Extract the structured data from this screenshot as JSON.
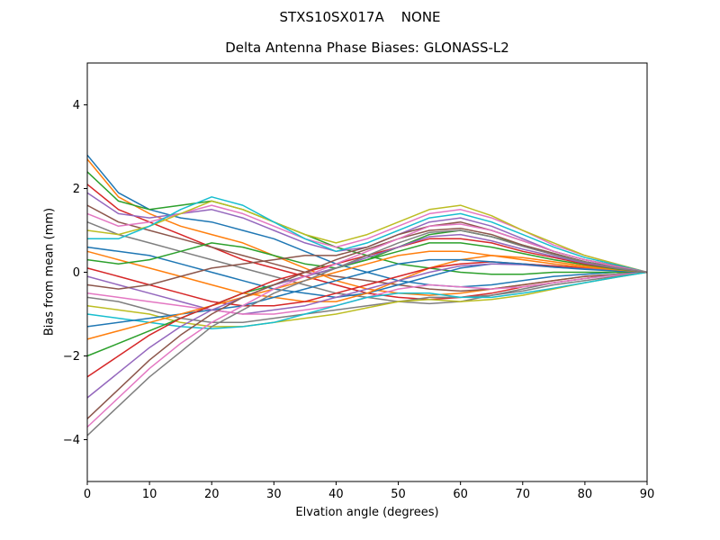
{
  "chart_data": {
    "type": "line",
    "suptitle": "STXS10SX017A    NONE",
    "title": "Delta Antenna Phase Biases: GLONASS-L2",
    "xlabel": "Elvation angle (degrees)",
    "ylabel": "Bias from mean (mm)",
    "xlim": [
      0,
      90
    ],
    "ylim": [
      -5,
      5
    ],
    "xticks": [
      {
        "value": 0,
        "label": "0"
      },
      {
        "value": 10,
        "label": "10"
      },
      {
        "value": 20,
        "label": "20"
      },
      {
        "value": 30,
        "label": "30"
      },
      {
        "value": 40,
        "label": "40"
      },
      {
        "value": 50,
        "label": "50"
      },
      {
        "value": 60,
        "label": "60"
      },
      {
        "value": 70,
        "label": "70"
      },
      {
        "value": 80,
        "label": "80"
      },
      {
        "value": 90,
        "label": "90"
      }
    ],
    "yticks": [
      {
        "value": -4,
        "label": "−4"
      },
      {
        "value": -2,
        "label": "−2"
      },
      {
        "value": 0,
        "label": "0"
      },
      {
        "value": 2,
        "label": "2"
      },
      {
        "value": 4,
        "label": "4"
      }
    ],
    "grid": false,
    "legend": "none",
    "x": [
      0,
      5,
      10,
      15,
      20,
      25,
      30,
      35,
      40,
      45,
      50,
      55,
      60,
      65,
      70,
      75,
      80,
      85,
      90
    ],
    "series": [
      {
        "color": "#1f77b4",
        "values": [
          2.8,
          1.9,
          1.5,
          1.3,
          1.2,
          1.0,
          0.8,
          0.5,
          0.2,
          0.0,
          -0.2,
          -0.3,
          -0.35,
          -0.3,
          -0.2,
          -0.1,
          -0.05,
          0.0,
          0.0
        ]
      },
      {
        "color": "#ff7f0e",
        "values": [
          2.7,
          1.8,
          1.4,
          1.1,
          0.9,
          0.7,
          0.4,
          0.1,
          -0.2,
          -0.4,
          -0.5,
          -0.55,
          -0.5,
          -0.4,
          -0.3,
          -0.2,
          -0.1,
          -0.05,
          0.0
        ]
      },
      {
        "color": "#2ca02c",
        "values": [
          2.4,
          1.7,
          1.5,
          1.6,
          1.7,
          1.5,
          1.2,
          0.9,
          0.6,
          0.4,
          0.2,
          0.1,
          0.0,
          -0.05,
          -0.05,
          0.0,
          0.0,
          0.0,
          0.0
        ]
      },
      {
        "color": "#d62728",
        "values": [
          2.1,
          1.5,
          1.2,
          0.9,
          0.6,
          0.3,
          0.1,
          -0.1,
          -0.3,
          -0.5,
          -0.6,
          -0.65,
          -0.6,
          -0.5,
          -0.35,
          -0.25,
          -0.15,
          -0.05,
          0.0
        ]
      },
      {
        "color": "#9467bd",
        "values": [
          1.9,
          1.4,
          1.3,
          1.4,
          1.5,
          1.3,
          1.0,
          0.7,
          0.5,
          0.6,
          0.9,
          1.2,
          1.3,
          1.1,
          0.8,
          0.5,
          0.3,
          0.15,
          0.0
        ]
      },
      {
        "color": "#8c564b",
        "values": [
          1.6,
          1.2,
          1.0,
          0.8,
          0.6,
          0.4,
          0.2,
          0.0,
          -0.1,
          -0.2,
          -0.3,
          -0.4,
          -0.45,
          -0.4,
          -0.3,
          -0.2,
          -0.1,
          -0.05,
          0.0
        ]
      },
      {
        "color": "#e377c2",
        "values": [
          1.4,
          1.1,
          1.2,
          1.4,
          1.6,
          1.4,
          1.1,
          0.8,
          0.6,
          0.8,
          1.1,
          1.4,
          1.5,
          1.3,
          1.0,
          0.65,
          0.4,
          0.2,
          0.0
        ]
      },
      {
        "color": "#7f7f7f",
        "values": [
          1.2,
          0.9,
          0.7,
          0.5,
          0.3,
          0.1,
          -0.1,
          -0.3,
          -0.5,
          -0.6,
          -0.7,
          -0.75,
          -0.7,
          -0.55,
          -0.4,
          -0.25,
          -0.15,
          -0.05,
          0.0
        ]
      },
      {
        "color": "#bcbd22",
        "values": [
          1.0,
          0.9,
          1.1,
          1.4,
          1.7,
          1.5,
          1.2,
          0.9,
          0.7,
          0.9,
          1.2,
          1.5,
          1.6,
          1.35,
          1.0,
          0.7,
          0.4,
          0.2,
          0.0
        ]
      },
      {
        "color": "#17becf",
        "values": [
          0.8,
          0.8,
          1.1,
          1.5,
          1.8,
          1.6,
          1.2,
          0.8,
          0.5,
          0.7,
          1.0,
          1.3,
          1.4,
          1.2,
          0.9,
          0.6,
          0.35,
          0.18,
          0.0
        ]
      },
      {
        "color": "#1f77b4",
        "values": [
          0.6,
          0.5,
          0.4,
          0.2,
          0.0,
          -0.2,
          -0.4,
          -0.5,
          -0.6,
          -0.5,
          -0.3,
          -0.1,
          0.1,
          0.2,
          0.2,
          0.15,
          0.1,
          0.05,
          0.0
        ]
      },
      {
        "color": "#ff7f0e",
        "values": [
          0.5,
          0.3,
          0.1,
          -0.1,
          -0.3,
          -0.5,
          -0.6,
          -0.7,
          -0.7,
          -0.5,
          -0.2,
          0.1,
          0.3,
          0.4,
          0.35,
          0.25,
          0.15,
          0.08,
          0.0
        ]
      },
      {
        "color": "#2ca02c",
        "values": [
          0.3,
          0.2,
          0.3,
          0.5,
          0.7,
          0.6,
          0.4,
          0.2,
          0.1,
          0.3,
          0.6,
          0.9,
          1.0,
          0.85,
          0.65,
          0.45,
          0.25,
          0.12,
          0.0
        ]
      },
      {
        "color": "#d62728",
        "values": [
          0.1,
          -0.1,
          -0.3,
          -0.5,
          -0.7,
          -0.8,
          -0.8,
          -0.7,
          -0.5,
          -0.3,
          -0.1,
          0.1,
          0.2,
          0.25,
          0.2,
          0.15,
          0.1,
          0.05,
          0.0
        ]
      },
      {
        "color": "#9467bd",
        "values": [
          -0.1,
          -0.3,
          -0.5,
          -0.7,
          -0.9,
          -1.0,
          -0.9,
          -0.8,
          -0.6,
          -0.4,
          -0.2,
          0.0,
          0.15,
          0.2,
          0.18,
          0.12,
          0.08,
          0.04,
          0.0
        ]
      },
      {
        "color": "#8c564b",
        "values": [
          -0.3,
          -0.4,
          -0.3,
          -0.1,
          0.1,
          0.2,
          0.3,
          0.4,
          0.4,
          0.6,
          0.9,
          1.1,
          1.2,
          1.0,
          0.75,
          0.5,
          0.3,
          0.15,
          0.0
        ]
      },
      {
        "color": "#e377c2",
        "values": [
          -0.5,
          -0.6,
          -0.7,
          -0.8,
          -0.9,
          -1.0,
          -1.0,
          -0.9,
          -0.8,
          -0.6,
          -0.4,
          -0.3,
          -0.35,
          -0.4,
          -0.35,
          -0.25,
          -0.15,
          -0.07,
          0.0
        ]
      },
      {
        "color": "#7f7f7f",
        "values": [
          -0.6,
          -0.7,
          -0.9,
          -1.1,
          -1.2,
          -1.2,
          -1.1,
          -1.0,
          -0.9,
          -0.8,
          -0.7,
          -0.6,
          -0.6,
          -0.55,
          -0.45,
          -0.3,
          -0.2,
          -0.1,
          0.0
        ]
      },
      {
        "color": "#bcbd22",
        "values": [
          -0.8,
          -0.9,
          -1.0,
          -1.2,
          -1.3,
          -1.3,
          -1.2,
          -1.1,
          -1.0,
          -0.85,
          -0.7,
          -0.65,
          -0.7,
          -0.65,
          -0.55,
          -0.4,
          -0.25,
          -0.12,
          0.0
        ]
      },
      {
        "color": "#17becf",
        "values": [
          -1.0,
          -1.1,
          -1.2,
          -1.3,
          -1.35,
          -1.3,
          -1.2,
          -1.0,
          -0.8,
          -0.6,
          -0.5,
          -0.5,
          -0.6,
          -0.6,
          -0.5,
          -0.38,
          -0.25,
          -0.12,
          0.0
        ]
      },
      {
        "color": "#1f77b4",
        "values": [
          -1.3,
          -1.2,
          -1.1,
          -1.0,
          -0.9,
          -0.8,
          -0.6,
          -0.4,
          -0.2,
          0.0,
          0.2,
          0.3,
          0.3,
          0.25,
          0.2,
          0.12,
          0.07,
          0.03,
          0.0
        ]
      },
      {
        "color": "#ff7f0e",
        "values": [
          -1.6,
          -1.4,
          -1.2,
          -1.0,
          -0.8,
          -0.6,
          -0.4,
          -0.2,
          0.0,
          0.2,
          0.4,
          0.5,
          0.5,
          0.4,
          0.3,
          0.2,
          0.12,
          0.06,
          0.0
        ]
      },
      {
        "color": "#2ca02c",
        "values": [
          -2.0,
          -1.7,
          -1.4,
          -1.1,
          -0.8,
          -0.5,
          -0.3,
          -0.1,
          0.1,
          0.3,
          0.5,
          0.7,
          0.7,
          0.6,
          0.45,
          0.3,
          0.18,
          0.08,
          0.0
        ]
      },
      {
        "color": "#d62728",
        "values": [
          -2.5,
          -2.0,
          -1.5,
          -1.1,
          -0.8,
          -0.5,
          -0.2,
          0.0,
          0.2,
          0.4,
          0.6,
          0.8,
          0.8,
          0.7,
          0.5,
          0.35,
          0.2,
          0.1,
          0.0
        ]
      },
      {
        "color": "#9467bd",
        "values": [
          -3.0,
          -2.4,
          -1.8,
          -1.3,
          -0.9,
          -0.6,
          -0.3,
          -0.1,
          0.1,
          0.35,
          0.6,
          0.85,
          0.9,
          0.75,
          0.55,
          0.38,
          0.22,
          0.1,
          0.0
        ]
      },
      {
        "color": "#8c564b",
        "values": [
          -3.5,
          -2.8,
          -2.1,
          -1.5,
          -1.0,
          -0.6,
          -0.3,
          0.0,
          0.3,
          0.55,
          0.8,
          1.0,
          1.05,
          0.9,
          0.65,
          0.45,
          0.25,
          0.12,
          0.0
        ]
      },
      {
        "color": "#e377c2",
        "values": [
          -3.7,
          -3.0,
          -2.3,
          -1.7,
          -1.2,
          -0.8,
          -0.4,
          -0.1,
          0.2,
          0.5,
          0.8,
          1.1,
          1.15,
          1.0,
          0.75,
          0.5,
          0.3,
          0.14,
          0.0
        ]
      },
      {
        "color": "#7f7f7f",
        "values": [
          -3.9,
          -3.2,
          -2.5,
          -1.9,
          -1.3,
          -0.9,
          -0.5,
          -0.2,
          0.1,
          0.4,
          0.7,
          0.95,
          1.0,
          0.85,
          0.62,
          0.42,
          0.24,
          0.11,
          0.0
        ]
      }
    ]
  }
}
